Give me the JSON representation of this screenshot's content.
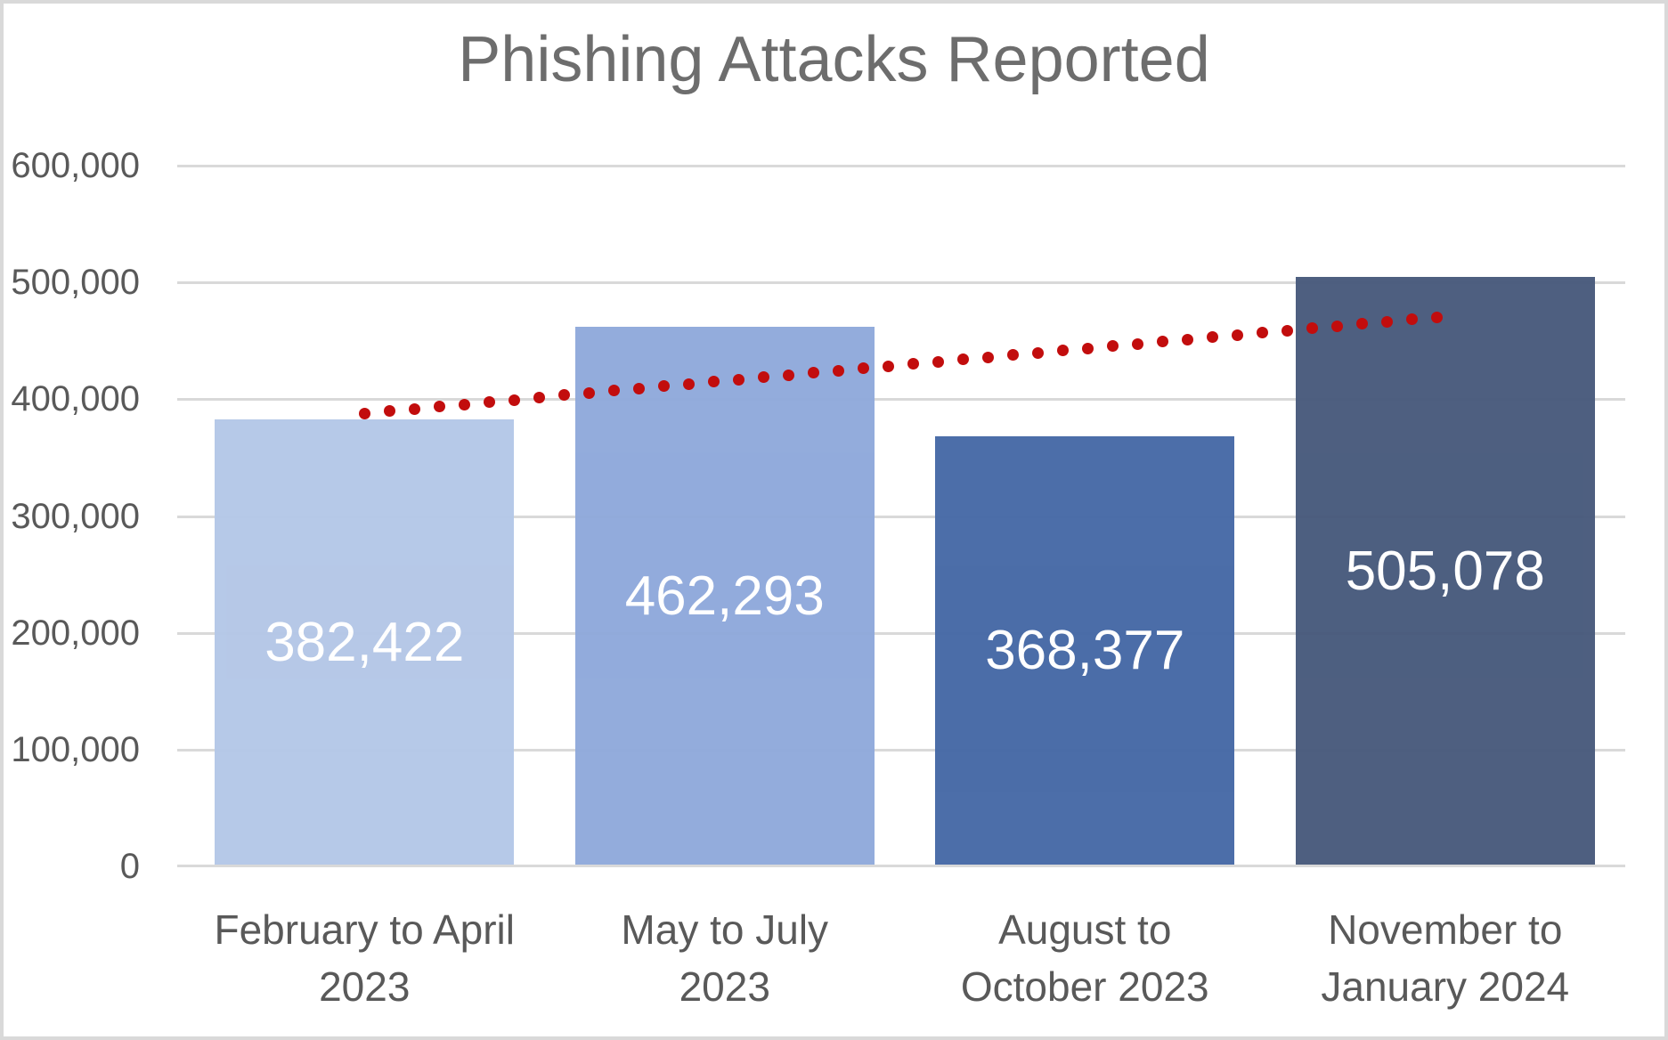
{
  "frame": {
    "background_color": "#FFFFFF",
    "border_color": "#D9D9D9"
  },
  "chart_data": {
    "type": "bar",
    "title": "Phishing Attacks Reported",
    "title_color": "#6D6D6D",
    "categories": [
      "February to April\n2023",
      "May to July\n2023",
      "August to\nOctober 2023",
      "November to\nJanuary 2024"
    ],
    "values": [
      382422,
      462293,
      368377,
      505078
    ],
    "value_labels": [
      "382,422",
      "462,293",
      "368,377",
      "505,078"
    ],
    "value_label_color": "#FFFFFF",
    "bar_colors": [
      "#B4C7E7",
      "#8FA9DB",
      "#4669A6",
      "#485A7C"
    ],
    "xlabel": "",
    "ylabel": "",
    "ylim": [
      0,
      600000
    ],
    "yticks": [
      {
        "value": 600000,
        "label": "600,000"
      },
      {
        "value": 500000,
        "label": "500,000"
      },
      {
        "value": 400000,
        "label": "400,000"
      },
      {
        "value": 300000,
        "label": "300,000"
      },
      {
        "value": 200000,
        "label": "200,000"
      },
      {
        "value": 100000,
        "label": "100,000"
      },
      {
        "value": 0,
        "label": "0"
      }
    ],
    "grid": true,
    "gridline_color": "#D9D9D9",
    "axis_text_color": "#595959",
    "legend": "none",
    "trendline": {
      "style": "dotted",
      "color": "#C20D0D",
      "start_category": 0,
      "end_category": 3,
      "start_value": 388000,
      "end_value": 471000,
      "dot_diameter": 13,
      "dot_spacing": 28
    }
  }
}
